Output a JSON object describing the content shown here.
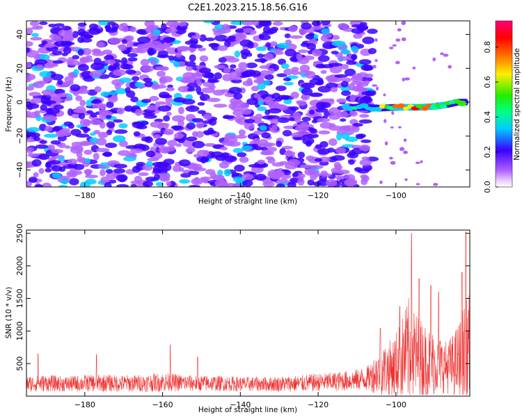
{
  "title": "C2E1.2023.215.18.56.G16",
  "chart_data": [
    {
      "type": "heatmap",
      "xlabel": "Height of straight line (km)",
      "ylabel": "Frequency (Hz)",
      "xlim": [
        -195,
        -81
      ],
      "ylim": [
        -50,
        48
      ],
      "xticks": [
        -180,
        -160,
        -140,
        -120,
        -100
      ],
      "yticks": [
        -40,
        -20,
        0,
        20,
        40
      ],
      "colormap": "rainbow (white to violet to blue to cyan to green to yellow to red to magenta)",
      "colorbar": {
        "label": "Normalized spectral amplitude",
        "range": [
          0.0,
          0.95
        ],
        "ticks": [
          0.0,
          0.2,
          0.4,
          0.6,
          0.8
        ]
      },
      "description": "Scattered low-amplitude noise (0.1-0.3) across the full frequency band from -195 to about -107 km; a narrow high-amplitude band near 0 Hz from about -113 to -82 km with peak values ~0.6-0.9 between -100 and -85 km.",
      "signal_band": {
        "x": [
          -113,
          -108,
          -104,
          -100,
          -97,
          -94,
          -90,
          -87,
          -84,
          -82
        ],
        "frequency": [
          -3,
          -3,
          -3.5,
          -3,
          -3,
          -3,
          -2.5,
          -1.5,
          0,
          0
        ],
        "amplitude": [
          0.25,
          0.35,
          0.5,
          0.6,
          0.75,
          0.7,
          0.65,
          0.6,
          0.55,
          0.4
        ]
      }
    },
    {
      "type": "line",
      "xlabel": "Height of straight line (km)",
      "ylabel": "SNR (10 * v/v)",
      "xlim": [
        -195,
        -81
      ],
      "ylim": [
        0,
        2550
      ],
      "xticks": [
        -180,
        -160,
        -140,
        -120,
        -100
      ],
      "yticks": [
        500,
        1000,
        1500,
        2000,
        2500
      ],
      "color": "#ee3333",
      "envelope": {
        "x": [
          -195,
          -190,
          -185,
          -180,
          -175,
          -170,
          -165,
          -160,
          -155,
          -150,
          -145,
          -140,
          -135,
          -130,
          -125,
          -120,
          -115,
          -110,
          -107,
          -105,
          -103,
          -101,
          -99,
          -97,
          -96,
          -95,
          -93,
          -91,
          -89,
          -87,
          -85,
          -84,
          -83,
          -82,
          -81
        ],
        "base": [
          150,
          160,
          150,
          160,
          160,
          155,
          160,
          170,
          165,
          160,
          160,
          150,
          150,
          150,
          155,
          170,
          180,
          200,
          220,
          260,
          280,
          300,
          350,
          420,
          450,
          400,
          380,
          360,
          350,
          330,
          340,
          350,
          380,
          420,
          500
        ],
        "spread": [
          250,
          260,
          240,
          260,
          270,
          260,
          270,
          300,
          260,
          250,
          240,
          230,
          230,
          240,
          260,
          280,
          300,
          330,
          400,
          650,
          800,
          900,
          1200,
          1600,
          1900,
          1400,
          1200,
          1050,
          900,
          800,
          1000,
          1200,
          1500,
          1600,
          1700
        ]
      },
      "peaks": [
        {
          "x": -192,
          "y": 650
        },
        {
          "x": -177,
          "y": 640
        },
        {
          "x": -158,
          "y": 790
        },
        {
          "x": -151,
          "y": 600
        },
        {
          "x": -104,
          "y": 1040
        },
        {
          "x": -99,
          "y": 1380
        },
        {
          "x": -96,
          "y": 2500
        },
        {
          "x": -94,
          "y": 1800
        },
        {
          "x": -91,
          "y": 1700
        },
        {
          "x": -89,
          "y": 1600
        },
        {
          "x": -82,
          "y": 2520
        },
        {
          "x": -83,
          "y": 1900
        }
      ]
    }
  ]
}
